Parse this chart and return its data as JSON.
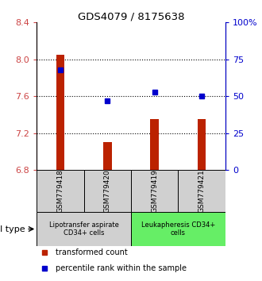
{
  "title": "GDS4079 / 8175638",
  "samples": [
    "GSM779418",
    "GSM779420",
    "GSM779419",
    "GSM779421"
  ],
  "transformed_counts": [
    8.05,
    7.1,
    7.35,
    7.35
  ],
  "percentile_ranks": [
    68,
    47,
    53,
    50
  ],
  "ylim_left": [
    6.8,
    8.4
  ],
  "yticks_left": [
    6.8,
    7.2,
    7.6,
    8.0,
    8.4
  ],
  "ylim_right": [
    0,
    100
  ],
  "yticks_right": [
    0,
    25,
    50,
    75,
    100
  ],
  "yticklabels_right": [
    "0",
    "25",
    "50",
    "75",
    "100%"
  ],
  "bar_color": "#bb2200",
  "dot_color": "#0000cc",
  "cell_types": [
    {
      "label": "Lipotransfer aspirate\nCD34+ cells",
      "samples": [
        0,
        1
      ],
      "color": "#d0d0d0"
    },
    {
      "label": "Leukapheresis CD34+\ncells",
      "samples": [
        2,
        3
      ],
      "color": "#66ee66"
    }
  ],
  "legend_items": [
    {
      "color": "#bb2200",
      "label": "transformed count"
    },
    {
      "color": "#0000cc",
      "label": "percentile rank within the sample"
    }
  ],
  "cell_type_label": "cell type"
}
